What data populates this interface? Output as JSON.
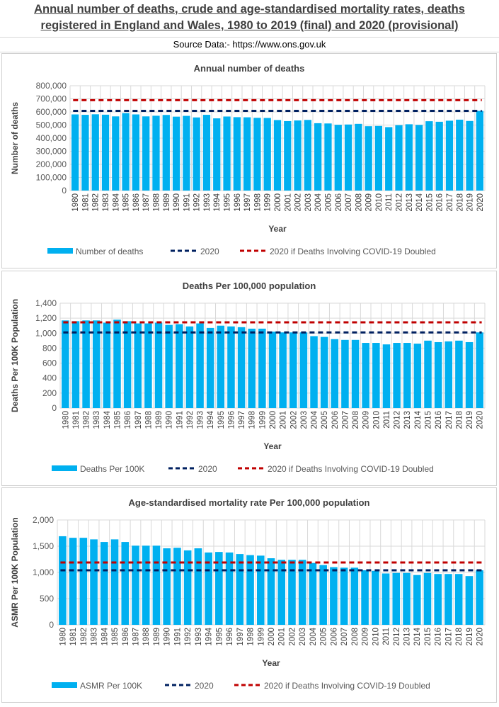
{
  "header": {
    "title_line1": "Annual number of deaths, crude and age-standardised mortality rates, deaths",
    "title_line2": "registered in England and Wales, 1980 to 2019 (final) and 2020 (provisional)",
    "source": "Source Data:- https://www.ons.gov.uk"
  },
  "colors": {
    "bar": "#00b0f0",
    "line_2020": "#002060",
    "line_doubled": "#c00000",
    "grid": "#d9d9d9"
  },
  "chart_data": [
    {
      "type": "bar",
      "title": "Annual number of deaths",
      "xlabel": "Year",
      "ylabel": "Number of deaths",
      "ylim": [
        0,
        800000
      ],
      "yticks": [
        0,
        100000,
        200000,
        300000,
        400000,
        500000,
        600000,
        700000,
        800000
      ],
      "ytick_labels": [
        "0",
        "100,000",
        "200,000",
        "300,000",
        "400,000",
        "500,000",
        "600,000",
        "700,000",
        "800,000"
      ],
      "grid": true,
      "legend_placement": "bottom",
      "categories": [
        "1980",
        "1981",
        "1982",
        "1983",
        "1984",
        "1985",
        "1986",
        "1987",
        "1988",
        "1989",
        "1990",
        "1991",
        "1992",
        "1993",
        "1994",
        "1995",
        "1996",
        "1997",
        "1998",
        "1999",
        "2000",
        "2001",
        "2002",
        "2003",
        "2004",
        "2005",
        "2006",
        "2007",
        "2008",
        "2009",
        "2010",
        "2011",
        "2012",
        "2013",
        "2014",
        "2015",
        "2016",
        "2017",
        "2018",
        "2019",
        "2020"
      ],
      "series": [
        {
          "name": "Number of deaths",
          "kind": "bar",
          "values": [
            581000,
            578000,
            582000,
            579000,
            566000,
            591000,
            581000,
            566000,
            571000,
            577000,
            564000,
            570000,
            558000,
            578000,
            551000,
            565000,
            560000,
            559000,
            555000,
            554000,
            538000,
            530000,
            535000,
            539000,
            514000,
            512000,
            502000,
            504000,
            509000,
            491000,
            493000,
            484000,
            499000,
            506000,
            501000,
            529000,
            525000,
            533000,
            541000,
            531000,
            608000
          ]
        },
        {
          "name": "2020",
          "kind": "dashed-line",
          "value": 608000
        },
        {
          "name": "2020 if Deaths Involving COVID-19 Doubled",
          "kind": "dashed-line",
          "value": 690000
        }
      ]
    },
    {
      "type": "bar",
      "title": "Deaths Per 100,000 population",
      "xlabel": "Year",
      "ylabel": "Deaths Per 100K Population",
      "ylim": [
        0,
        1400
      ],
      "yticks": [
        0,
        200,
        400,
        600,
        800,
        1000,
        1200,
        1400
      ],
      "ytick_labels": [
        "0",
        "200",
        "400",
        "600",
        "800",
        "1,000",
        "1,200",
        "1,400"
      ],
      "grid": true,
      "legend_placement": "bottom",
      "categories": [
        "1980",
        "1981",
        "1982",
        "1983",
        "1984",
        "1985",
        "1986",
        "1987",
        "1988",
        "1989",
        "1990",
        "1991",
        "1992",
        "1993",
        "1994",
        "1995",
        "1996",
        "1997",
        "1998",
        "1999",
        "2000",
        "2001",
        "2002",
        "2003",
        "2004",
        "2005",
        "2006",
        "2007",
        "2008",
        "2009",
        "2010",
        "2011",
        "2012",
        "2013",
        "2014",
        "2015",
        "2016",
        "2017",
        "2018",
        "2019",
        "2020"
      ],
      "series": [
        {
          "name": "Deaths Per 100K",
          "kind": "bar",
          "values": [
            1170,
            1160,
            1170,
            1170,
            1140,
            1180,
            1160,
            1130,
            1130,
            1140,
            1110,
            1120,
            1090,
            1130,
            1070,
            1100,
            1090,
            1080,
            1060,
            1060,
            1020,
            1010,
            1010,
            1010,
            960,
            950,
            920,
            910,
            910,
            870,
            870,
            850,
            870,
            870,
            860,
            900,
            880,
            890,
            900,
            880,
            1010
          ]
        },
        {
          "name": "2020",
          "kind": "dashed-line",
          "value": 1010
        },
        {
          "name": "2020 if Deaths Involving COVID-19 Doubled",
          "kind": "dashed-line",
          "value": 1145
        }
      ]
    },
    {
      "type": "bar",
      "title": "Age-standardised mortality rate Per 100,000 population",
      "xlabel": "Year",
      "ylabel": "ASMR Per 100K Population",
      "ylim": [
        0,
        2000
      ],
      "yticks": [
        0,
        500,
        1000,
        1500,
        2000
      ],
      "ytick_labels": [
        "0",
        "500",
        "1,000",
        "1,500",
        "2,000"
      ],
      "grid": true,
      "legend_placement": "bottom",
      "categories": [
        "1980",
        "1981",
        "1982",
        "1983",
        "1984",
        "1985",
        "1986",
        "1987",
        "1988",
        "1989",
        "1990",
        "1991",
        "1992",
        "1993",
        "1994",
        "1995",
        "1996",
        "1997",
        "1998",
        "1999",
        "2000",
        "2001",
        "2002",
        "2003",
        "2004",
        "2005",
        "2006",
        "2007",
        "2008",
        "2009",
        "2010",
        "2011",
        "2012",
        "2013",
        "2014",
        "2015",
        "2016",
        "2017",
        "2018",
        "2019",
        "2020"
      ],
      "series": [
        {
          "name": "ASMR Per 100K",
          "kind": "bar",
          "values": [
            1690,
            1660,
            1660,
            1630,
            1580,
            1630,
            1580,
            1510,
            1510,
            1510,
            1460,
            1470,
            1420,
            1460,
            1380,
            1390,
            1380,
            1350,
            1330,
            1320,
            1270,
            1240,
            1240,
            1240,
            1180,
            1140,
            1100,
            1090,
            1090,
            1040,
            1030,
            980,
            990,
            990,
            950,
            990,
            970,
            970,
            970,
            930,
            1040
          ]
        },
        {
          "name": "2020",
          "kind": "dashed-line",
          "value": 1040
        },
        {
          "name": "2020 if Deaths Involving COVID-19 Doubled",
          "kind": "dashed-line",
          "value": 1190
        }
      ]
    }
  ]
}
